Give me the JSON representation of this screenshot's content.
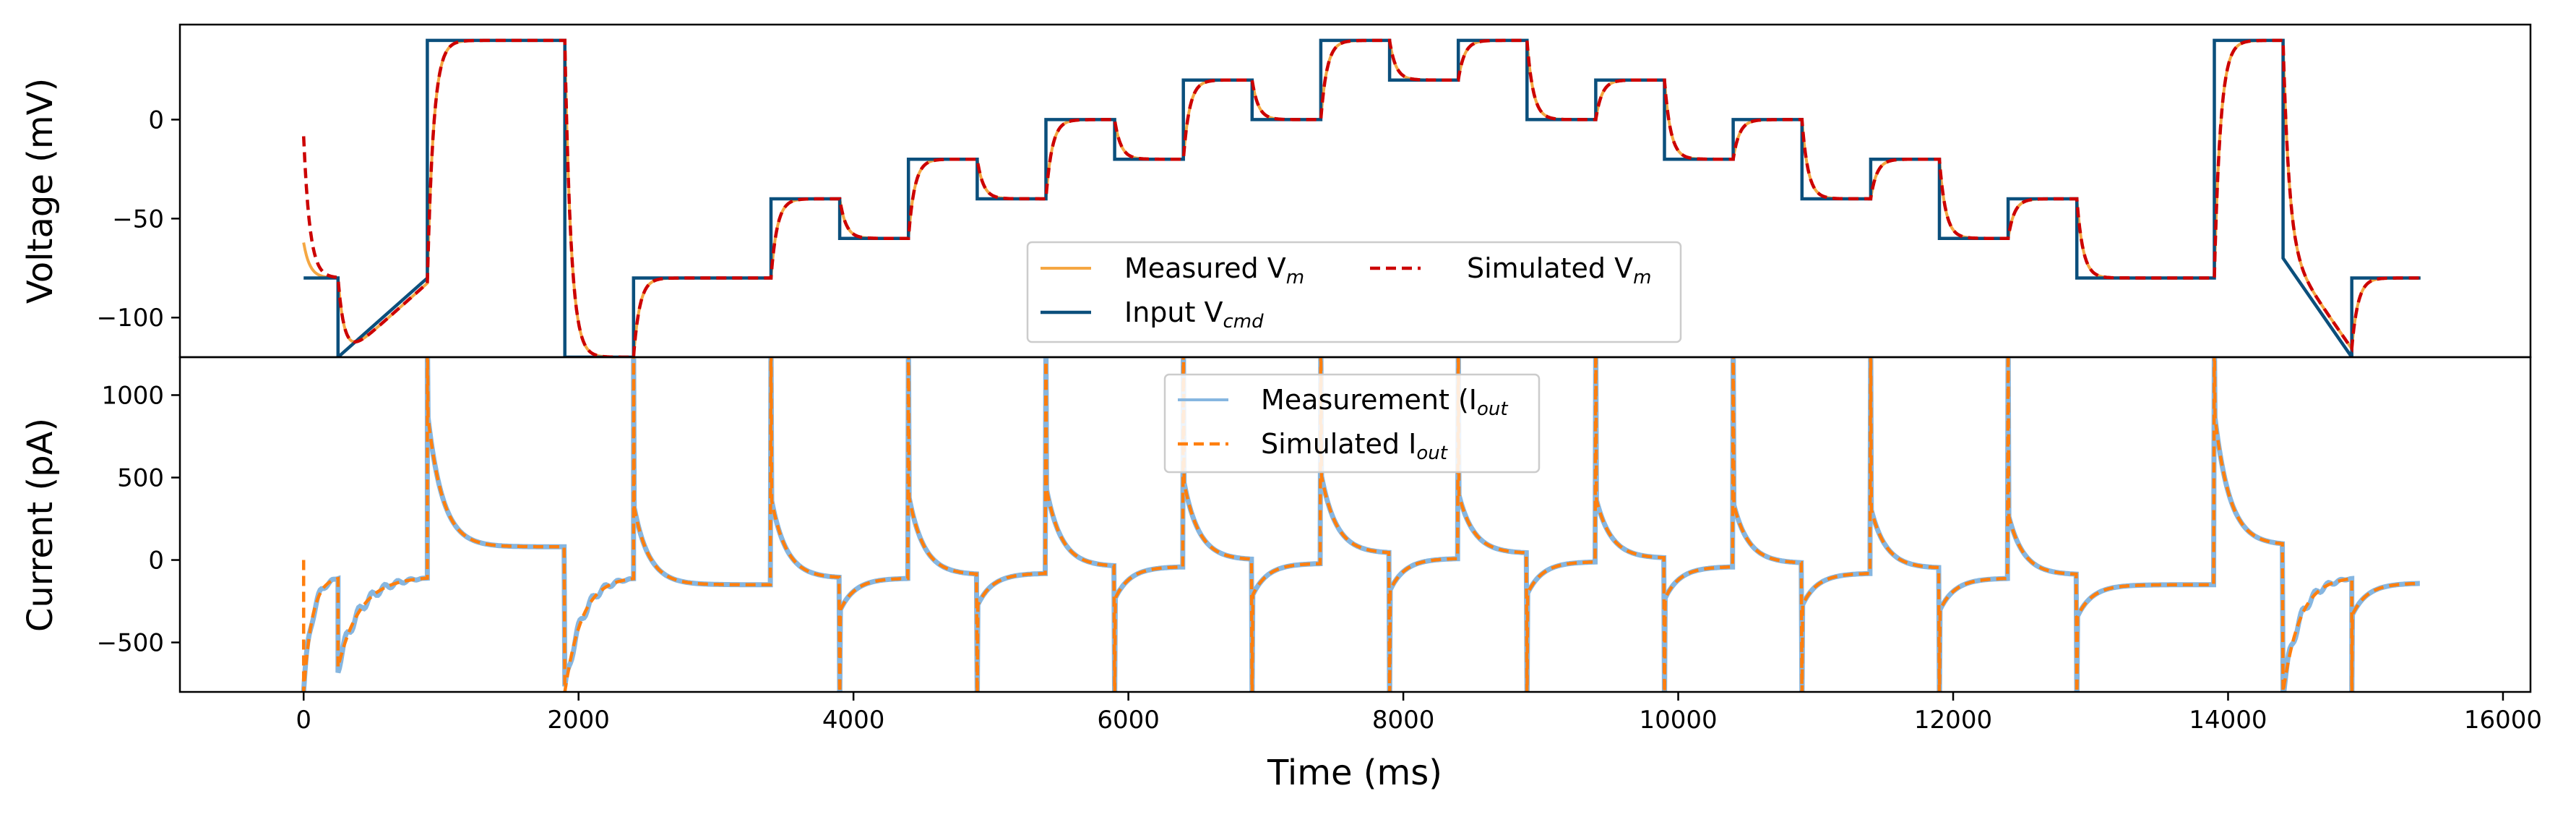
{
  "chart_data": [
    {
      "type": "line",
      "ylabel": "Voltage (mV)",
      "xlim": [
        -900,
        16200
      ],
      "ylim": [
        -120,
        48
      ],
      "yticks": [
        0,
        -50,
        -100
      ],
      "grid": false,
      "legend": {
        "placement": "lower-center",
        "columns": 2,
        "entries": [
          {
            "name": "Measured",
            "sub": "m",
            "color": "#f5a742",
            "style": "solid"
          },
          {
            "name": "Simulated",
            "sub": "m",
            "color": "#cc0000",
            "style": "dashed"
          },
          {
            "name": "Input",
            "sub": "cmd",
            "color": "#0b4f7c",
            "style": "solid"
          }
        ]
      },
      "protocol_steps": [
        {
          "t": [
            0,
            250
          ],
          "v": -80
        },
        {
          "t": [
            250,
            900
          ],
          "v": -120,
          "ramp_to": -80
        },
        {
          "t": [
            900,
            1900
          ],
          "v": 40
        },
        {
          "t": [
            1900,
            2400
          ],
          "v": -120
        },
        {
          "t": [
            2400,
            3400
          ],
          "v": -80
        },
        {
          "t": [
            3400,
            3900
          ],
          "v": -40
        },
        {
          "t": [
            3900,
            4400
          ],
          "v": -60
        },
        {
          "t": [
            4400,
            4900
          ],
          "v": -20
        },
        {
          "t": [
            4900,
            5400
          ],
          "v": -40
        },
        {
          "t": [
            5400,
            5900
          ],
          "v": 0
        },
        {
          "t": [
            5900,
            6400
          ],
          "v": -20
        },
        {
          "t": [
            6400,
            6900
          ],
          "v": 20
        },
        {
          "t": [
            6900,
            7400
          ],
          "v": 0
        },
        {
          "t": [
            7400,
            7900
          ],
          "v": 40
        },
        {
          "t": [
            7900,
            8400
          ],
          "v": 20
        },
        {
          "t": [
            8400,
            8900
          ],
          "v": 40
        },
        {
          "t": [
            8900,
            9400
          ],
          "v": 0
        },
        {
          "t": [
            9400,
            9900
          ],
          "v": 20
        },
        {
          "t": [
            9900,
            10400
          ],
          "v": -20
        },
        {
          "t": [
            10400,
            10900
          ],
          "v": 0
        },
        {
          "t": [
            10900,
            11400
          ],
          "v": -40
        },
        {
          "t": [
            11400,
            11900
          ],
          "v": -20
        },
        {
          "t": [
            11900,
            12400
          ],
          "v": -60
        },
        {
          "t": [
            12400,
            12900
          ],
          "v": -40
        },
        {
          "t": [
            12900,
            13900
          ],
          "v": -80
        },
        {
          "t": [
            13900,
            14400
          ],
          "v": 40
        },
        {
          "t": [
            14400,
            14900
          ],
          "v": -70,
          "ramp_to": -120
        },
        {
          "t": [
            14900,
            15400
          ],
          "v": -80
        }
      ],
      "simulated_start_v": 0
    },
    {
      "type": "line",
      "xlabel": "Time (ms)",
      "ylabel": "Current (pA)",
      "xlim": [
        -900,
        16200
      ],
      "ylim": [
        -800,
        1230
      ],
      "yticks": [
        1000,
        500,
        0,
        -500
      ],
      "xticks": [
        0,
        2000,
        4000,
        6000,
        8000,
        10000,
        12000,
        14000,
        16000
      ],
      "grid": false,
      "legend": {
        "placement": "upper-center",
        "columns": 1,
        "entries": [
          {
            "name": "Measurement (",
            "sub": "out",
            "color": "#86b6e0",
            "style": "solid"
          },
          {
            "name": "Simulated",
            "sub": "out",
            "color": "#ff7f0e",
            "style": "dashed"
          }
        ]
      },
      "steady_current_pA": [
        {
          "t": [
            900,
            1900
          ],
          "i": 80
        },
        {
          "t": [
            2400,
            3400
          ],
          "i": -150
        },
        {
          "t": [
            3400,
            3900
          ],
          "i": -110
        },
        {
          "t": [
            3900,
            4400
          ],
          "i": -110
        },
        {
          "t": [
            4400,
            4900
          ],
          "i": -90
        },
        {
          "t": [
            4900,
            5400
          ],
          "i": -80
        },
        {
          "t": [
            5400,
            5900
          ],
          "i": -40
        },
        {
          "t": [
            5900,
            6400
          ],
          "i": -40
        },
        {
          "t": [
            6400,
            6900
          ],
          "i": 0
        },
        {
          "t": [
            6900,
            7400
          ],
          "i": -20
        },
        {
          "t": [
            7400,
            7900
          ],
          "i": 40
        },
        {
          "t": [
            7900,
            8400
          ],
          "i": 10
        },
        {
          "t": [
            8400,
            8900
          ],
          "i": 40
        },
        {
          "t": [
            8900,
            9400
          ],
          "i": -10
        },
        {
          "t": [
            9400,
            9900
          ],
          "i": 10
        },
        {
          "t": [
            9900,
            10400
          ],
          "i": -40
        },
        {
          "t": [
            10400,
            10900
          ],
          "i": -20
        },
        {
          "t": [
            10900,
            11400
          ],
          "i": -80
        },
        {
          "t": [
            11400,
            11900
          ],
          "i": -50
        },
        {
          "t": [
            11900,
            12400
          ],
          "i": -110
        },
        {
          "t": [
            12400,
            12900
          ],
          "i": -90
        },
        {
          "t": [
            12900,
            13900
          ],
          "i": -150
        },
        {
          "t": [
            13900,
            14400
          ],
          "i": 90
        },
        {
          "t": [
            14900,
            15400
          ],
          "i": -140
        }
      ]
    }
  ]
}
